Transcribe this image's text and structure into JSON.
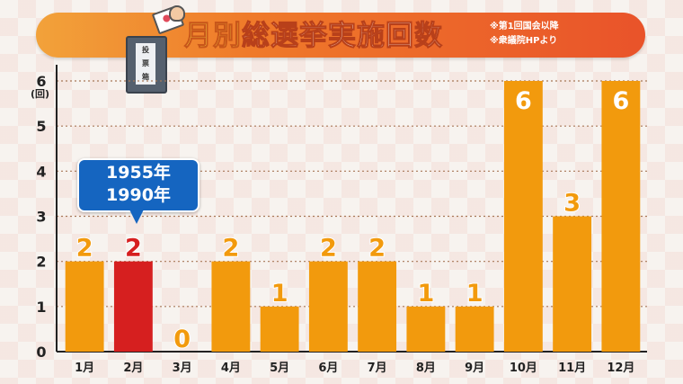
{
  "header": {
    "title_accent": "月別",
    "title_main": "総選挙実施回数",
    "note_1": "※第1回国会以降",
    "note_2": "※衆議院HPより",
    "ballot_box_label": "投\n票\n箱",
    "colors": {
      "banner": "#ef7a2a",
      "accent": "#ffe14a"
    }
  },
  "callout": {
    "line_1": "1955年",
    "line_2": "1990年",
    "color": "#1565c0"
  },
  "chart_data": {
    "type": "bar",
    "categories": [
      "1月",
      "2月",
      "3月",
      "4月",
      "5月",
      "6月",
      "7月",
      "8月",
      "9月",
      "10月",
      "11月",
      "12月"
    ],
    "values": [
      2,
      2,
      0,
      2,
      1,
      2,
      2,
      1,
      1,
      6,
      3,
      6
    ],
    "highlight_index": 1,
    "bar_color": "#f29a0d",
    "highlight_color": "#d61f1f",
    "y_unit": "(回)",
    "ylim": [
      0,
      6
    ],
    "yticks": [
      0,
      1,
      2,
      3,
      4,
      5,
      6
    ],
    "grid": true,
    "title": "",
    "xlabel": "",
    "ylabel": ""
  }
}
